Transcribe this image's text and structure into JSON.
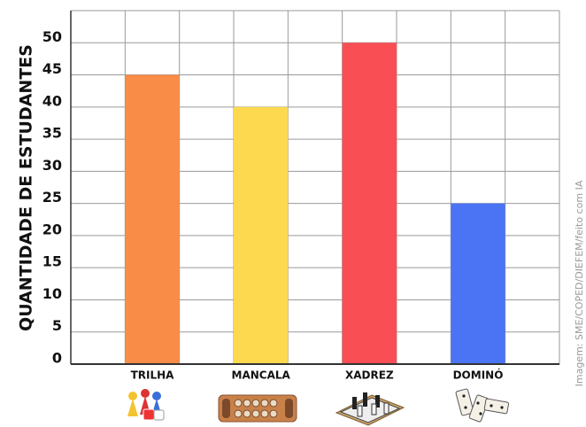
{
  "chart_data": {
    "type": "bar",
    "y_label": "QUANTIDADE DE ESTUDANTES",
    "credit": "Imagem: SME/COPED/DIEFEM/feito com IA",
    "categories": [
      "TRILHA",
      "MANCALA",
      "XADREZ",
      "DOMINÓ"
    ],
    "values": [
      45,
      40,
      50,
      25
    ],
    "colors": [
      "#f98c46",
      "#fdd94f",
      "#f94e54",
      "#4b74f5"
    ],
    "ylim": [
      0,
      55
    ],
    "yticks": [
      0,
      5,
      10,
      15,
      20,
      25,
      30,
      35,
      40,
      45,
      50
    ],
    "grid": true
  }
}
